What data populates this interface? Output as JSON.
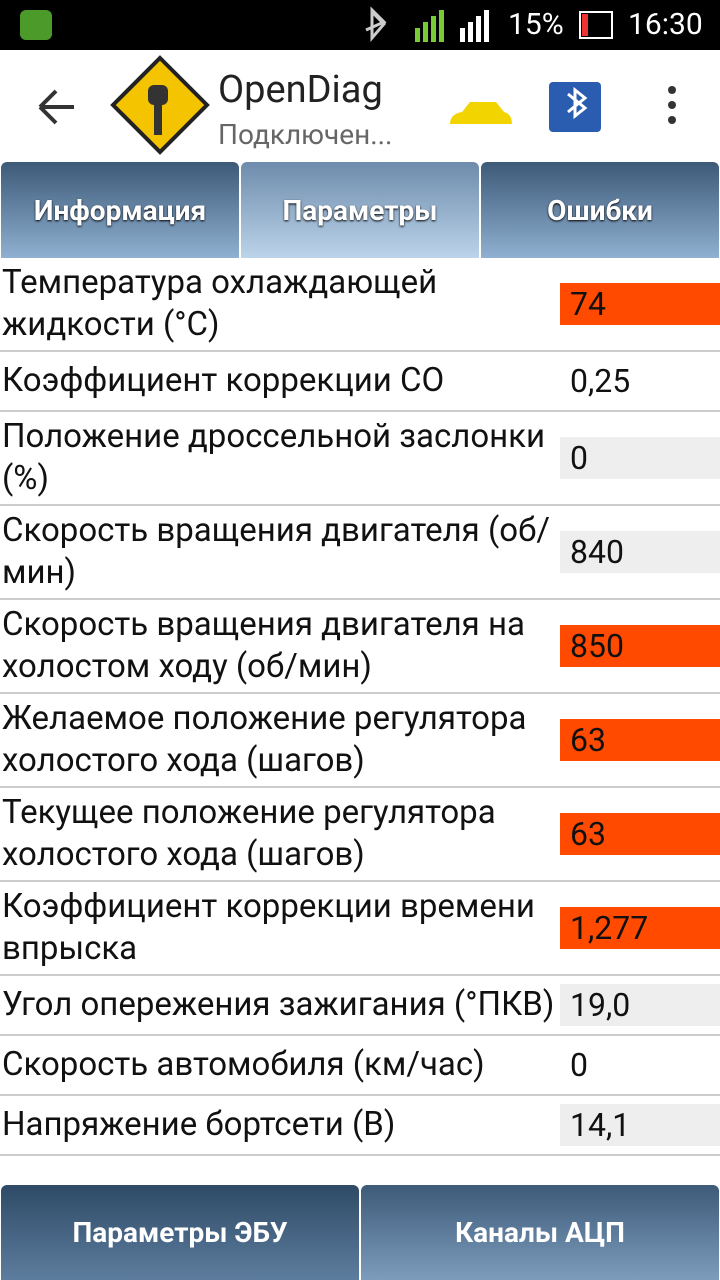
{
  "status_bar": {
    "battery": "15%",
    "time": "16:30"
  },
  "app_bar": {
    "title": "OpenDiag",
    "subtitle": "Подключен..."
  },
  "tabs": [
    "Информация",
    "Параметры",
    "Ошибки"
  ],
  "active_tab": 1,
  "rows": [
    {
      "label": "Температура охлаждающей жидкости (°C)",
      "value": "74",
      "color": "#ff4a00"
    },
    {
      "label": "Коэффициент коррекции CO",
      "value": "0,25",
      "color": "#ffffff"
    },
    {
      "label": "Положение дроссельной заслонки (%)",
      "value": "0",
      "color": "#eeeeee"
    },
    {
      "label": "Скорость вращения двигателя (об/мин)",
      "value": "840",
      "color": "#eeeeee"
    },
    {
      "label": "Скорость вращения двигателя на холостом ходу (об/мин)",
      "value": "850",
      "color": "#ff4a00"
    },
    {
      "label": "Желаемое положение регулятора холостого хода (шагов)",
      "value": "63",
      "color": "#ff4a00"
    },
    {
      "label": "Текущее положение регулятора холостого хода (шагов)",
      "value": "63",
      "color": "#ff4a00"
    },
    {
      "label": "Коэффициент коррекции времени впрыска",
      "value": "1,277",
      "color": "#ff4a00"
    },
    {
      "label": "Угол опережения зажигания (°ПКВ)",
      "value": "19,0",
      "color": "#eeeeee"
    },
    {
      "label": "Скорость автомобиля (км/час)",
      "value": "0",
      "color": "#ffffff"
    },
    {
      "label": "Напряжение бортсети (В)",
      "value": "14,1",
      "color": "#eeeeee"
    }
  ],
  "bottom_tabs": [
    "Параметры ЭБУ",
    "Каналы АЦП"
  ]
}
